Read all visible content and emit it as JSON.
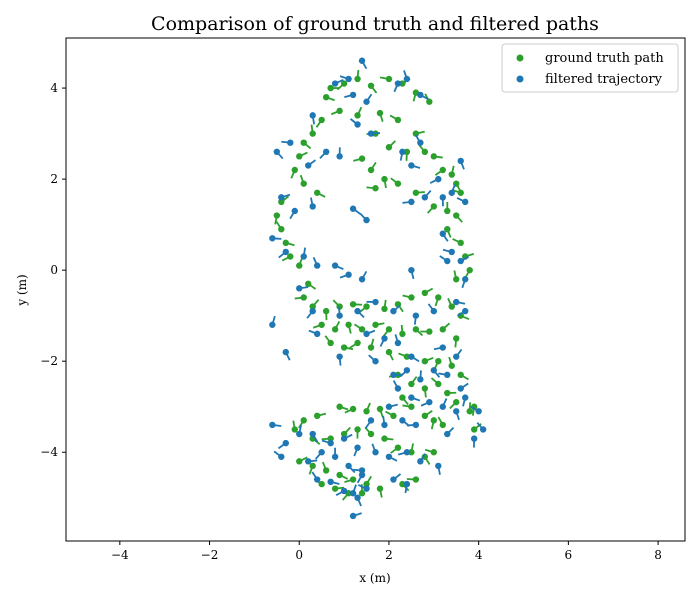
{
  "chart_data": {
    "type": "scatter",
    "title": "Comparison of ground truth and filtered paths",
    "xlabel": "x (m)",
    "ylabel": "y (m)",
    "xlim": [
      -5.2,
      8.6
    ],
    "ylim": [
      -5.95,
      5.1
    ],
    "xticks": [
      -4,
      -2,
      0,
      2,
      4,
      6,
      8
    ],
    "yticks": [
      -4,
      -2,
      0,
      2,
      4
    ],
    "xtick_labels": [
      "−4",
      "−2",
      "0",
      "2",
      "4",
      "6",
      "8"
    ],
    "ytick_labels": [
      "−4",
      "−2",
      "0",
      "2",
      "4"
    ],
    "grid": false,
    "legend": "top-right",
    "series": [
      {
        "name": "ground truth path",
        "color": "#2ca02c",
        "points": [
          [
            0.7,
            4.0
          ],
          [
            1.0,
            4.1
          ],
          [
            1.3,
            4.2
          ],
          [
            1.6,
            4.05
          ],
          [
            2.0,
            4.2
          ],
          [
            2.3,
            4.1
          ],
          [
            2.6,
            3.9
          ],
          [
            2.9,
            3.7
          ],
          [
            0.6,
            3.8
          ],
          [
            0.9,
            3.5
          ],
          [
            1.3,
            3.4
          ],
          [
            1.8,
            3.45
          ],
          [
            2.2,
            3.3
          ],
          [
            2.6,
            3.0
          ],
          [
            0.5,
            3.3
          ],
          [
            0.3,
            3.0
          ],
          [
            0.1,
            2.8
          ],
          [
            1.7,
            3.0
          ],
          [
            2.0,
            2.7
          ],
          [
            2.4,
            2.6
          ],
          [
            2.8,
            2.6
          ],
          [
            3.0,
            2.5
          ],
          [
            3.2,
            2.2
          ],
          [
            3.4,
            2.1
          ],
          [
            3.5,
            1.9
          ],
          [
            3.6,
            1.7
          ],
          [
            0.0,
            2.5
          ],
          [
            -0.1,
            2.2
          ],
          [
            0.1,
            1.9
          ],
          [
            0.4,
            1.7
          ],
          [
            1.4,
            2.45
          ],
          [
            1.6,
            2.2
          ],
          [
            1.9,
            2.0
          ],
          [
            2.2,
            1.9
          ],
          [
            2.6,
            1.7
          ],
          [
            3.0,
            1.4
          ],
          [
            3.3,
            1.3
          ],
          [
            3.5,
            1.2
          ],
          [
            1.7,
            1.8
          ],
          [
            -0.4,
            1.5
          ],
          [
            -0.5,
            1.2
          ],
          [
            -0.4,
            0.9
          ],
          [
            -0.3,
            0.6
          ],
          [
            -0.2,
            0.3
          ],
          [
            0.0,
            0.1
          ],
          [
            3.3,
            0.9
          ],
          [
            3.6,
            0.6
          ],
          [
            3.7,
            0.3
          ],
          [
            3.8,
            0.0
          ],
          [
            3.5,
            -0.2
          ],
          [
            0.2,
            -0.3
          ],
          [
            0.1,
            -0.6
          ],
          [
            0.3,
            -0.8
          ],
          [
            0.6,
            -0.9
          ],
          [
            0.9,
            -0.8
          ],
          [
            1.2,
            -0.75
          ],
          [
            1.5,
            -0.8
          ],
          [
            1.9,
            -0.85
          ],
          [
            2.2,
            -0.75
          ],
          [
            2.5,
            -0.6
          ],
          [
            2.8,
            -0.5
          ],
          [
            3.1,
            -0.6
          ],
          [
            3.4,
            -0.8
          ],
          [
            3.6,
            -1.0
          ],
          [
            0.5,
            -1.2
          ],
          [
            0.8,
            -1.3
          ],
          [
            1.1,
            -1.2
          ],
          [
            1.4,
            -1.3
          ],
          [
            1.7,
            -1.2
          ],
          [
            2.0,
            -1.3
          ],
          [
            2.3,
            -1.4
          ],
          [
            2.6,
            -1.3
          ],
          [
            2.9,
            -1.35
          ],
          [
            3.2,
            -1.3
          ],
          [
            3.5,
            -1.5
          ],
          [
            0.7,
            -1.6
          ],
          [
            1.0,
            -1.7
          ],
          [
            1.3,
            -1.6
          ],
          [
            1.6,
            -1.7
          ],
          [
            2.0,
            -1.8
          ],
          [
            2.4,
            -1.9
          ],
          [
            2.8,
            -2.0
          ],
          [
            3.1,
            -2.0
          ],
          [
            3.4,
            -2.1
          ],
          [
            3.6,
            -2.3
          ],
          [
            2.2,
            -2.3
          ],
          [
            2.5,
            -2.5
          ],
          [
            2.8,
            -2.6
          ],
          [
            3.1,
            -2.5
          ],
          [
            3.3,
            -2.7
          ],
          [
            3.5,
            -2.9
          ],
          [
            3.8,
            -3.1
          ],
          [
            2.3,
            -2.8
          ],
          [
            2.5,
            -3.0
          ],
          [
            2.8,
            -3.2
          ],
          [
            3.0,
            -3.3
          ],
          [
            3.2,
            -3.4
          ],
          [
            0.9,
            -3.0
          ],
          [
            1.2,
            -3.05
          ],
          [
            1.5,
            -3.1
          ],
          [
            1.8,
            -3.05
          ],
          [
            2.1,
            -3.2
          ],
          [
            0.4,
            -3.2
          ],
          [
            0.1,
            -3.3
          ],
          [
            -0.1,
            -3.5
          ],
          [
            0.3,
            -3.7
          ],
          [
            0.7,
            -3.7
          ],
          [
            1.0,
            -3.6
          ],
          [
            1.3,
            -3.5
          ],
          [
            1.6,
            -3.6
          ],
          [
            1.9,
            -3.7
          ],
          [
            2.2,
            -3.9
          ],
          [
            2.5,
            -4.0
          ],
          [
            2.8,
            -4.1
          ],
          [
            3.0,
            -4.0
          ],
          [
            0.0,
            -4.2
          ],
          [
            0.3,
            -4.3
          ],
          [
            0.6,
            -4.4
          ],
          [
            0.9,
            -4.5
          ],
          [
            1.2,
            -4.6
          ],
          [
            1.5,
            -4.7
          ],
          [
            1.8,
            -4.8
          ],
          [
            0.5,
            -4.7
          ],
          [
            0.8,
            -4.8
          ],
          [
            1.1,
            -4.9
          ],
          [
            1.4,
            -4.9
          ],
          [
            2.3,
            -4.7
          ],
          [
            2.6,
            -4.6
          ],
          [
            3.9,
            -3.5
          ],
          [
            3.9,
            -3.0
          ]
        ]
      },
      {
        "name": "filtered trajectory",
        "color": "#1f77b4",
        "points": [
          [
            1.4,
            4.6
          ],
          [
            1.1,
            4.2
          ],
          [
            0.8,
            4.1
          ],
          [
            2.2,
            4.1
          ],
          [
            2.4,
            4.2
          ],
          [
            2.7,
            3.85
          ],
          [
            1.2,
            3.85
          ],
          [
            1.5,
            3.7
          ],
          [
            0.3,
            3.4
          ],
          [
            1.3,
            3.2
          ],
          [
            1.6,
            3.0
          ],
          [
            0.6,
            2.6
          ],
          [
            0.9,
            2.5
          ],
          [
            -0.5,
            2.6
          ],
          [
            -0.2,
            2.8
          ],
          [
            0.2,
            2.3
          ],
          [
            2.3,
            2.6
          ],
          [
            2.7,
            2.8
          ],
          [
            2.5,
            2.3
          ],
          [
            3.1,
            2.0
          ],
          [
            3.4,
            1.7
          ],
          [
            3.6,
            2.4
          ],
          [
            3.7,
            1.5
          ],
          [
            -0.4,
            1.6
          ],
          [
            -0.1,
            1.3
          ],
          [
            0.3,
            1.4
          ],
          [
            1.2,
            1.35
          ],
          [
            2.5,
            1.5
          ],
          [
            2.8,
            1.6
          ],
          [
            3.2,
            1.6
          ],
          [
            1.5,
            1.1
          ],
          [
            -0.6,
            0.7
          ],
          [
            -0.3,
            0.4
          ],
          [
            0.1,
            0.3
          ],
          [
            3.2,
            0.8
          ],
          [
            3.4,
            0.4
          ],
          [
            3.6,
            0.2
          ],
          [
            3.7,
            -0.2
          ],
          [
            0.4,
            0.1
          ],
          [
            0.8,
            0.1
          ],
          [
            1.1,
            -0.1
          ],
          [
            1.4,
            -0.2
          ],
          [
            2.5,
            0.0
          ],
          [
            3.3,
            0.2
          ],
          [
            0.0,
            -0.4
          ],
          [
            0.3,
            -0.9
          ],
          [
            0.9,
            -1.0
          ],
          [
            1.3,
            -0.9
          ],
          [
            1.7,
            -0.7
          ],
          [
            2.1,
            -0.9
          ],
          [
            2.6,
            -1.0
          ],
          [
            3.0,
            -0.9
          ],
          [
            3.5,
            -0.7
          ],
          [
            3.7,
            -0.9
          ],
          [
            -0.6,
            -1.2
          ],
          [
            -0.3,
            -1.8
          ],
          [
            0.4,
            -1.4
          ],
          [
            1.5,
            -1.4
          ],
          [
            1.9,
            -1.5
          ],
          [
            2.2,
            -1.6
          ],
          [
            2.5,
            -1.9
          ],
          [
            3.2,
            -1.7
          ],
          [
            3.5,
            -1.9
          ],
          [
            0.9,
            -1.9
          ],
          [
            1.7,
            -2.0
          ],
          [
            2.1,
            -2.3
          ],
          [
            2.4,
            -2.2
          ],
          [
            2.7,
            -2.4
          ],
          [
            3.0,
            -2.2
          ],
          [
            3.3,
            -2.3
          ],
          [
            3.6,
            -2.6
          ],
          [
            3.7,
            -2.8
          ],
          [
            2.2,
            -2.6
          ],
          [
            2.5,
            -2.8
          ],
          [
            2.9,
            -2.9
          ],
          [
            3.2,
            -3.0
          ],
          [
            3.5,
            -3.1
          ],
          [
            4.0,
            -3.1
          ],
          [
            2.0,
            -3.0
          ],
          [
            1.6,
            -3.3
          ],
          [
            1.9,
            -3.4
          ],
          [
            2.3,
            -3.3
          ],
          [
            2.6,
            -3.4
          ],
          [
            3.3,
            -3.6
          ],
          [
            3.9,
            -3.7
          ],
          [
            4.1,
            -3.5
          ],
          [
            -0.6,
            -3.4
          ],
          [
            -0.3,
            -3.8
          ],
          [
            0.0,
            -3.6
          ],
          [
            0.3,
            -3.6
          ],
          [
            0.7,
            -3.8
          ],
          [
            1.0,
            -3.7
          ],
          [
            1.3,
            -3.9
          ],
          [
            1.7,
            -4.0
          ],
          [
            2.0,
            -4.1
          ],
          [
            2.4,
            -4.0
          ],
          [
            2.7,
            -4.2
          ],
          [
            3.1,
            -4.3
          ],
          [
            -0.4,
            -4.1
          ],
          [
            0.2,
            -4.2
          ],
          [
            0.5,
            -4.0
          ],
          [
            0.8,
            -4.1
          ],
          [
            1.1,
            -4.3
          ],
          [
            1.4,
            -4.4
          ],
          [
            2.1,
            -4.6
          ],
          [
            2.4,
            -4.7
          ],
          [
            0.4,
            -4.6
          ],
          [
            0.7,
            -4.65
          ],
          [
            1.0,
            -4.85
          ],
          [
            1.2,
            -4.9
          ],
          [
            1.3,
            -5.0
          ],
          [
            1.5,
            -4.8
          ],
          [
            1.2,
            -5.4
          ],
          [
            1.4,
            -4.5
          ]
        ]
      }
    ]
  }
}
